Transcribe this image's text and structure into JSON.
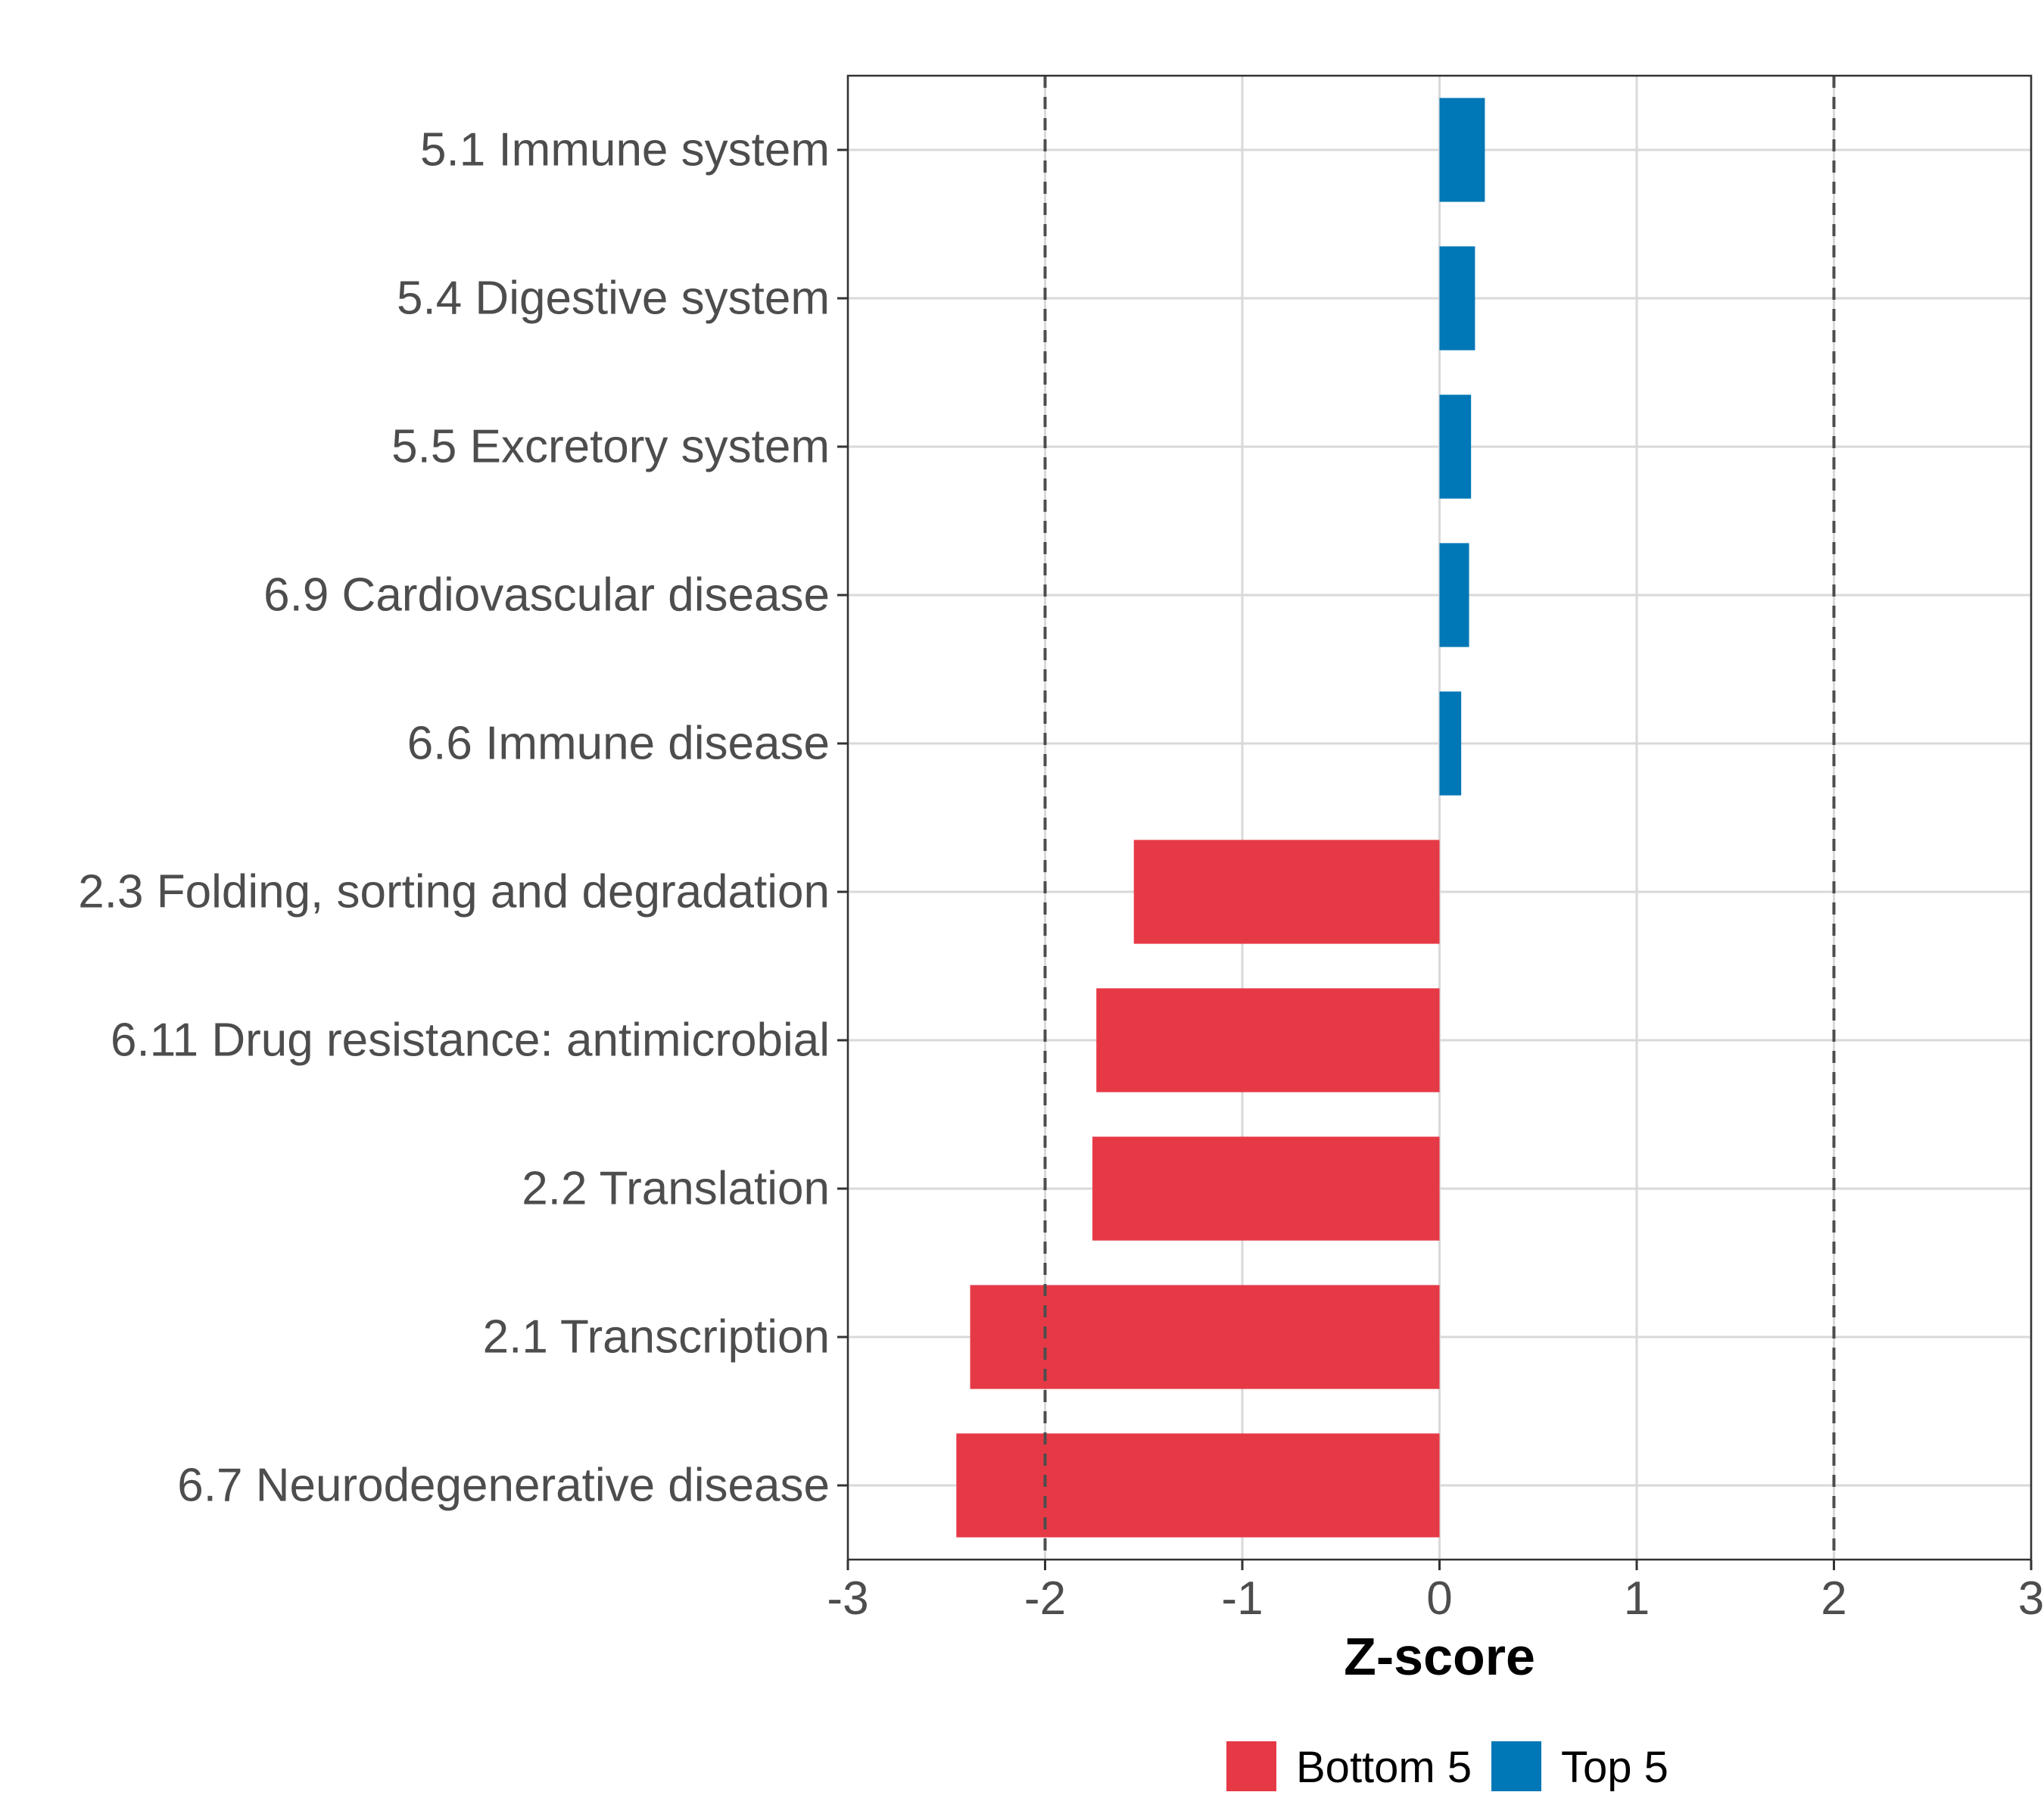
{
  "chart_data": {
    "type": "bar",
    "orientation": "horizontal",
    "categories": [
      "5.1 Immune system",
      "5.4 Digestive system",
      "5.5 Excretory system",
      "6.9 Cardiovascular disease",
      "6.6 Immune disease",
      "2.3 Folding, sorting and degradation",
      "6.11 Drug resistance: antimicrobial",
      "2.2 Translation",
      "2.1 Transcription",
      "6.7 Neurodegenerative disease"
    ],
    "values": [
      0.23,
      0.18,
      0.16,
      0.15,
      0.11,
      -1.55,
      -1.74,
      -1.76,
      -2.38,
      -2.45
    ],
    "groups": [
      "Top 5",
      "Top 5",
      "Top 5",
      "Top 5",
      "Top 5",
      "Bottom 5",
      "Bottom 5",
      "Bottom 5",
      "Bottom 5",
      "Bottom 5"
    ],
    "xlabel": "Z-score",
    "ylabel": "",
    "xlim": [
      -3,
      3
    ],
    "xticks": [
      "-3",
      "-2",
      "-1",
      "0",
      "1",
      "2",
      "3"
    ],
    "reference_lines": [
      -2,
      2
    ],
    "grid": true,
    "legend": {
      "placement": "bottom",
      "items": [
        {
          "label": "Bottom 5",
          "color": "#e63946"
        },
        {
          "label": "Top 5",
          "color": "#0077b6"
        }
      ]
    },
    "colors": {
      "Bottom 5": "#e63946",
      "Top 5": "#0077b6"
    }
  }
}
